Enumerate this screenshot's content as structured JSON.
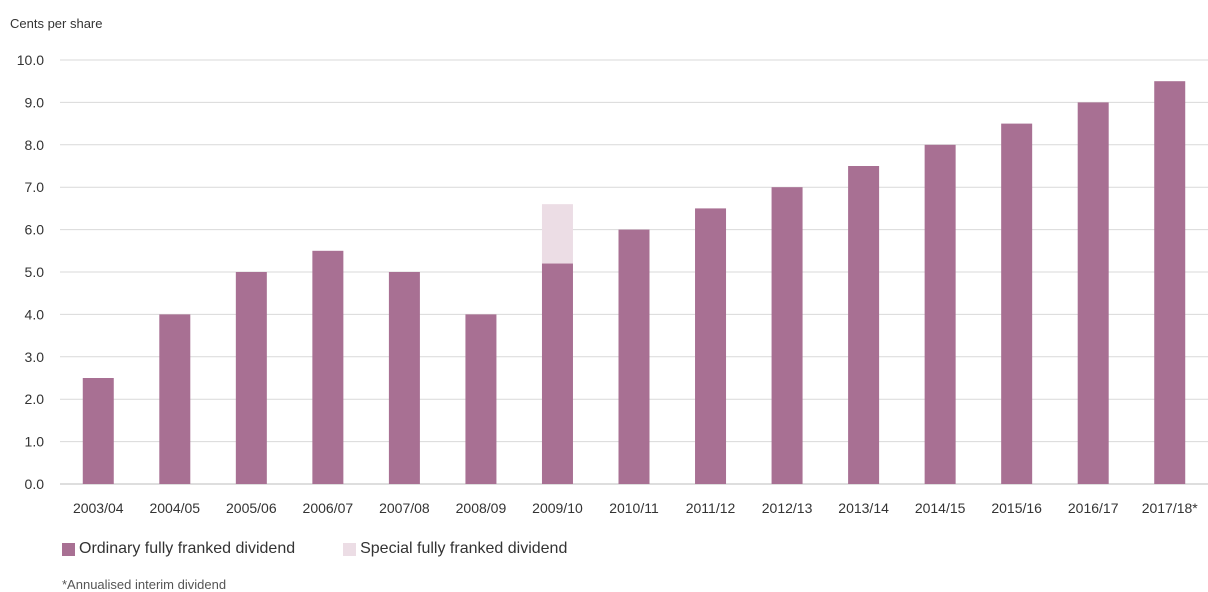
{
  "chart_data": {
    "type": "bar",
    "stacked": true,
    "ylabel": "Cents per share",
    "ylim": [
      0,
      10
    ],
    "yticks": [
      "0.0",
      "1.0",
      "2.0",
      "3.0",
      "4.0",
      "5.0",
      "6.0",
      "7.0",
      "8.0",
      "9.0",
      "10.0"
    ],
    "grid": true,
    "legend_position": "bottom-left",
    "categories": [
      "2003/04",
      "2004/05",
      "2005/06",
      "2006/07",
      "2007/08",
      "2008/09",
      "2009/10",
      "2010/11",
      "2011/12",
      "2012/13",
      "2013/14",
      "2014/15",
      "2015/16",
      "2016/17",
      "2017/18*"
    ],
    "series": [
      {
        "name": "Ordinary fully franked dividend",
        "color": "#a87093",
        "values": [
          2.5,
          4.0,
          5.0,
          5.5,
          5.0,
          4.0,
          5.2,
          6.0,
          6.5,
          7.0,
          7.5,
          8.0,
          8.5,
          9.0,
          9.5
        ]
      },
      {
        "name": "Special fully franked dividend",
        "color": "#ecdde5",
        "values": [
          0,
          0,
          0,
          0,
          0,
          0,
          1.4,
          0,
          0,
          0,
          0,
          0,
          0,
          0,
          0
        ]
      }
    ],
    "footnote": "*Annualised interim dividend"
  }
}
